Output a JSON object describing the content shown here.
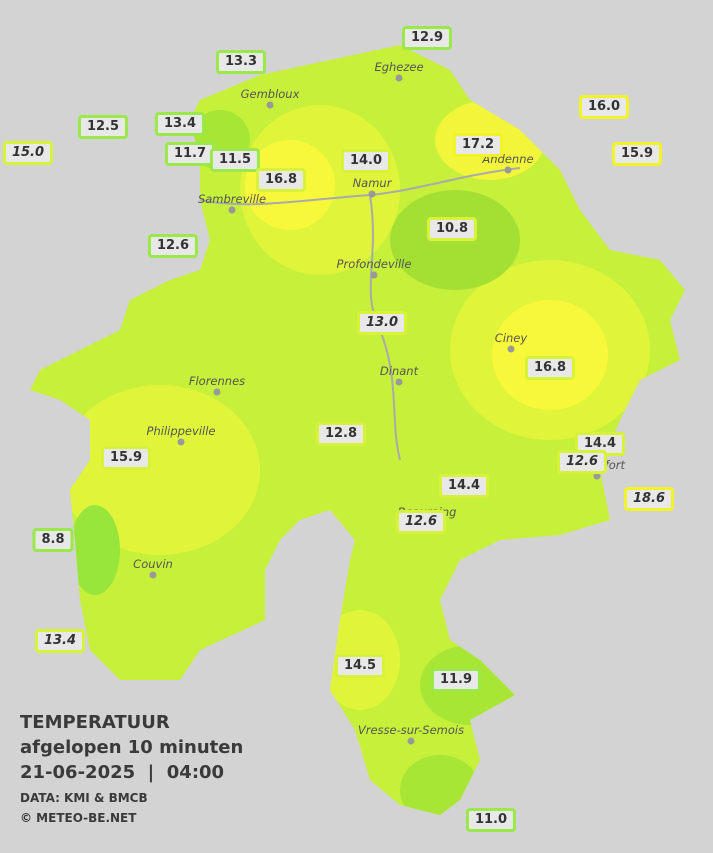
{
  "title": {
    "heading": "TEMPERATUUR",
    "subtitle": "afgelopen 10 minuten",
    "datetime": "21-06-2025  |  04:00",
    "source": "DATA: KMI & BMCB",
    "credit": "© METEO-BE.NET"
  },
  "cities": [
    "Eghezee",
    "Gembloux",
    "Andenne",
    "Namur",
    "Sambreville",
    "Profondeville",
    "Ciney",
    "Dinant",
    "Florennes",
    "Philippeville",
    "Rochefort",
    "Beauraing",
    "Couvin",
    "Vresse-sur-Semois"
  ],
  "stations": [
    "12.9",
    "13.3",
    "12.5",
    "13.4",
    "15.0",
    "11.7",
    "11.5",
    "16.8",
    "14.0",
    "16.0",
    "17.2",
    "15.9",
    "10.8",
    "12.6",
    "13.0",
    "16.8",
    "12.8",
    "14.4",
    "12.6",
    "15.9",
    "14.4",
    "18.6",
    "12.6",
    "8.8",
    "13.4",
    "14.5",
    "11.9",
    "11.0"
  ]
}
